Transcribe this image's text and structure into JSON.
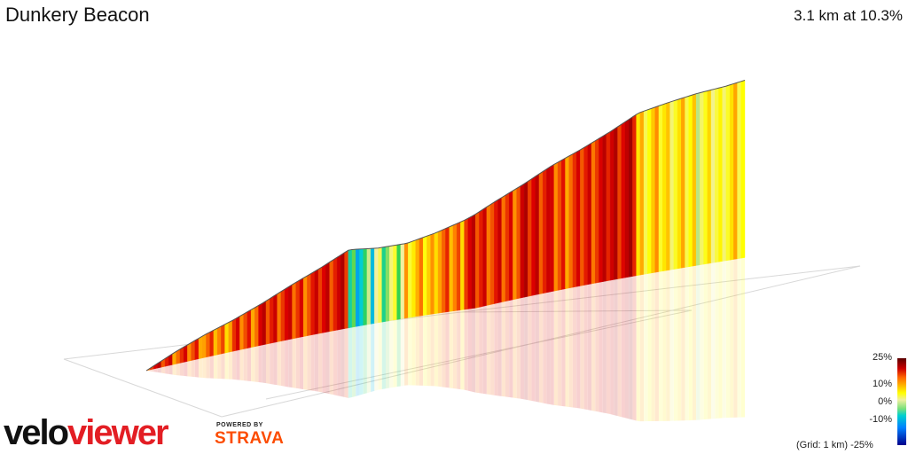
{
  "header": {
    "title": "Dunkery Beacon",
    "summary": "3.1 km at 10.3%"
  },
  "legend": {
    "ticks": [
      "25%",
      "10%",
      "0%",
      "-10%"
    ],
    "grid_note": "(Grid: 1 km)",
    "min_label": "-25%"
  },
  "branding": {
    "logo_part1": "velo",
    "logo_part2": "viewer",
    "powered_by": "POWERED BY",
    "strava": "STRAVA"
  },
  "chart_data": {
    "type": "area",
    "title": "Dunkery Beacon",
    "subtitle": "3.1 km at 10.3%",
    "xlabel": "",
    "ylabel": "",
    "x_unit": "km",
    "gradient_scale_percent": [
      -25,
      25
    ],
    "distance_km": [
      0,
      0.15,
      0.3,
      0.45,
      0.6,
      0.75,
      0.9,
      1.05,
      1.2,
      1.35,
      1.5,
      1.65,
      1.8,
      1.95,
      2.1,
      2.25,
      2.4,
      2.55,
      2.7,
      2.85,
      3.0,
      3.1
    ],
    "gradient_percent": [
      16,
      14,
      12,
      10,
      12,
      14,
      13,
      15,
      -4,
      0,
      7,
      10,
      14,
      13,
      15,
      12,
      14,
      16,
      6,
      5,
      3,
      5
    ]
  }
}
